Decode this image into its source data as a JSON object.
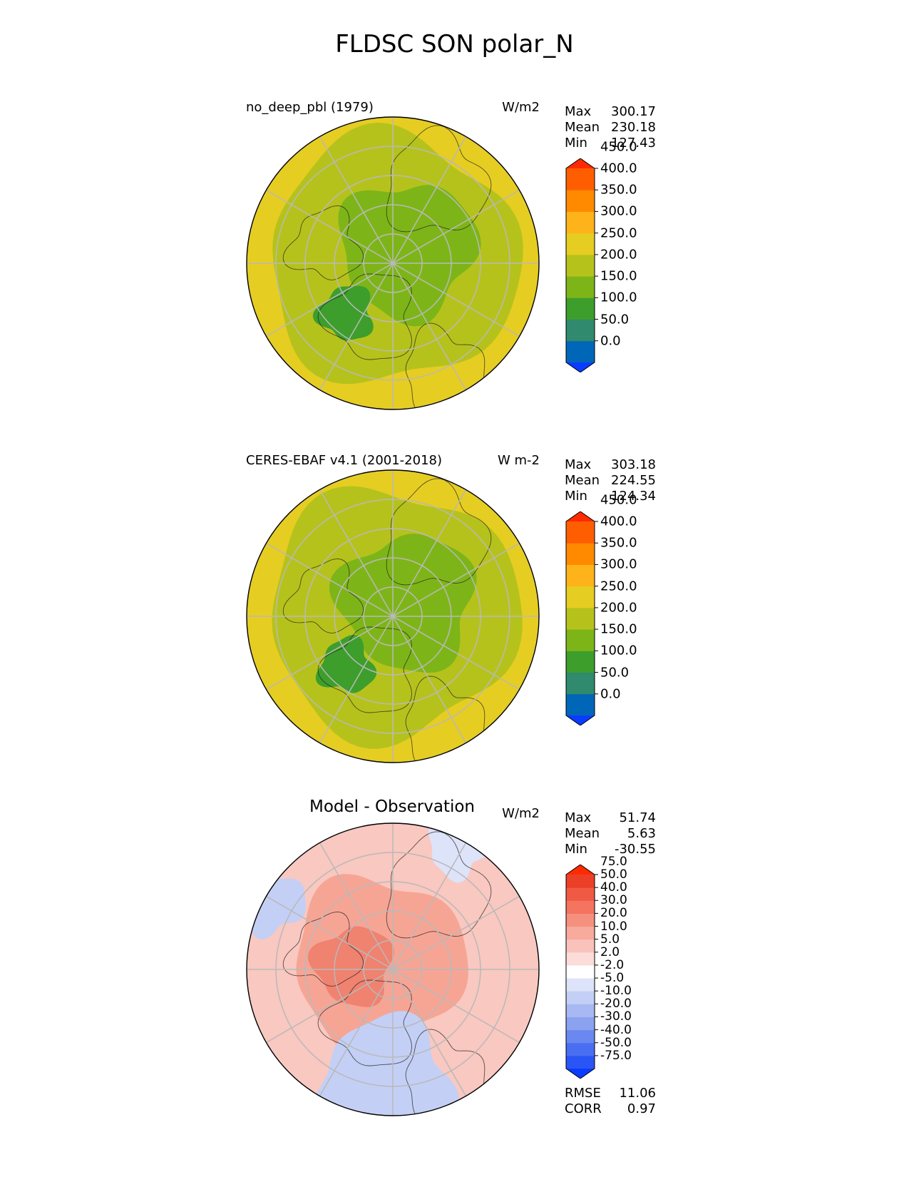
{
  "title": "FLDSC SON polar_N",
  "panels": [
    {
      "id": "model",
      "left_title": "no_deep_pbl (1979)",
      "center_title": "",
      "units": "W/m2",
      "stats": [
        {
          "label": "Max",
          "value": "300.17"
        },
        {
          "label": "Mean",
          "value": "230.18"
        },
        {
          "label": "Min",
          "value": "127.43"
        }
      ],
      "colorbar": {
        "colors": [
          "#0a3cff",
          "#0066b8",
          "#2f8a6e",
          "#3d9e2c",
          "#7db518",
          "#b6c21c",
          "#e6cd22",
          "#ffb31a",
          "#ff8a00",
          "#ff5e00",
          "#ff2a00"
        ],
        "ticks": [
          "0.0",
          "50.0",
          "100.0",
          "150.0",
          "200.0",
          "250.0",
          "300.0",
          "350.0",
          "400.0",
          "450.0"
        ]
      },
      "map_colors": {
        "outer": "#e6cd22",
        "mid": "#b6c21c",
        "inner": "#7db518",
        "core": "#3d9e2c"
      }
    },
    {
      "id": "obs",
      "left_title": "CERES-EBAF v4.1 (2001-2018)",
      "center_title": "",
      "units": "W m-2",
      "stats": [
        {
          "label": "Max",
          "value": "303.18"
        },
        {
          "label": "Mean",
          "value": "224.55"
        },
        {
          "label": "Min",
          "value": "124.34"
        }
      ],
      "colorbar": {
        "colors": [
          "#0a3cff",
          "#0066b8",
          "#2f8a6e",
          "#3d9e2c",
          "#7db518",
          "#b6c21c",
          "#e6cd22",
          "#ffb31a",
          "#ff8a00",
          "#ff5e00",
          "#ff2a00"
        ],
        "ticks": [
          "0.0",
          "50.0",
          "100.0",
          "150.0",
          "200.0",
          "250.0",
          "300.0",
          "350.0",
          "400.0",
          "450.0"
        ]
      },
      "map_colors": {
        "outer": "#e6cd22",
        "mid": "#b6c21c",
        "inner": "#7db518",
        "core": "#3d9e2c"
      }
    },
    {
      "id": "diff",
      "left_title": "",
      "center_title": "Model - Observation",
      "units": "W/m2",
      "stats": [
        {
          "label": "Max",
          "value": "51.74"
        },
        {
          "label": "Mean",
          "value": "5.63"
        },
        {
          "label": "Min",
          "value": "-30.55"
        }
      ],
      "colorbar": {
        "colors": [
          "#0a3cff",
          "#2a55f5",
          "#4a6ef2",
          "#6a88f0",
          "#8aa2f0",
          "#a8b8f2",
          "#c4cff5",
          "#dde3f8",
          "#ffffff",
          "#fbdcd8",
          "#f9c3bb",
          "#f8aa9c",
          "#f6907e",
          "#f47460",
          "#f05a44",
          "#ec3f28",
          "#ff2a00"
        ],
        "ticks": [
          "-75.0",
          "-50.0",
          "-40.0",
          "-30.0",
          "-20.0",
          "-10.0",
          "-5.0",
          "-2.0",
          "2.0",
          "5.0",
          "10.0",
          "20.0",
          "30.0",
          "40.0",
          "50.0",
          "75.0"
        ]
      },
      "map_colors": {
        "outer": "#f9c8c0",
        "mid": "#f6a595",
        "inner": "#f08270",
        "core": "#c4cff5"
      }
    }
  ],
  "skill": [
    {
      "label": "RMSE",
      "value": "11.06"
    },
    {
      "label": "CORR",
      "value": "0.97"
    }
  ]
}
